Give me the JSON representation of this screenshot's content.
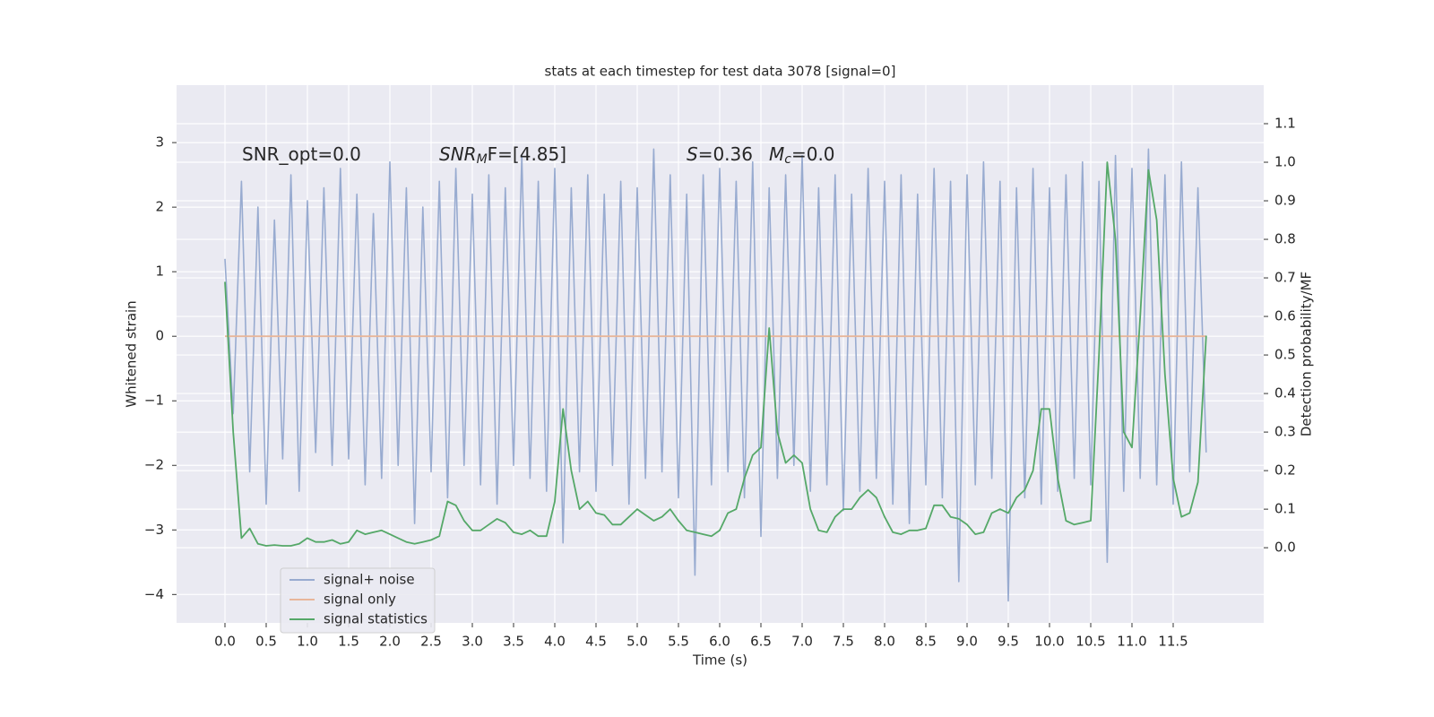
{
  "chart_data": {
    "type": "line",
    "title": "stats at each timestep for test data 3078 [signal=0]",
    "xlabel": "Time (s)",
    "ylabel": "Whitened strain",
    "y2label": "Detection probability/MF",
    "annotations": [
      {
        "text": "SNR_opt=0.0"
      },
      {
        "text": "SNR",
        "sub": "M",
        "tail": "F=[4.85]"
      },
      {
        "text": "S",
        "tail": "=0.36"
      },
      {
        "text": "M",
        "sub": "c",
        "tail": "=0.0"
      }
    ],
    "xlim": [
      -0.587,
      12.598
    ],
    "ylim": [
      -4.44,
      3.89
    ],
    "y2lim": [
      -0.195,
      1.2
    ],
    "xticks": [
      {
        "value": 0,
        "label": "0.0"
      },
      0.5,
      {
        "value": 1,
        "label": "1.0"
      },
      1.5,
      {
        "value": 2,
        "label": "2.0"
      },
      2.5,
      {
        "value": 3,
        "label": "3.0"
      },
      3.5,
      {
        "value": 4,
        "label": "4.0"
      },
      4.5,
      {
        "value": 5,
        "label": "5.0"
      },
      5.5,
      {
        "value": 6,
        "label": "6.0"
      },
      6.5,
      {
        "value": 7,
        "label": "7.0"
      },
      7.5,
      {
        "value": 8,
        "label": "8.0"
      },
      8.5,
      {
        "value": 9,
        "label": "9.0"
      },
      9.5,
      {
        "value": 10,
        "label": "10.0"
      },
      10.5,
      {
        "value": 11,
        "label": "11.0"
      },
      11.5
    ],
    "yticks": [
      {
        "value": -4,
        "label": "−4"
      },
      {
        "value": -3,
        "label": "−3"
      },
      {
        "value": -2,
        "label": "−2"
      },
      {
        "value": -1,
        "label": "−1"
      },
      0,
      1,
      2,
      3
    ],
    "y2ticks": [
      {
        "value": 0,
        "label": "0.0"
      },
      0.1,
      0.2,
      0.3,
      0.4,
      0.5,
      0.6,
      0.7,
      0.8,
      0.9,
      {
        "value": 1,
        "label": "1.0"
      },
      1.1
    ],
    "grid": true,
    "legend": "lower left",
    "x": [
      0.0,
      0.1,
      0.2,
      0.3,
      0.4,
      0.5,
      0.6,
      0.7,
      0.8,
      0.9,
      1.0,
      1.1,
      1.2,
      1.3,
      1.4,
      1.5,
      1.6,
      1.7,
      1.8,
      1.9,
      2.0,
      2.1,
      2.2,
      2.3,
      2.4,
      2.5,
      2.6,
      2.7,
      2.8,
      2.9,
      3.0,
      3.1,
      3.2,
      3.3,
      3.4,
      3.5,
      3.6,
      3.7,
      3.8,
      3.9,
      4.0,
      4.1,
      4.2,
      4.3,
      4.4,
      4.5,
      4.6,
      4.7,
      4.8,
      4.9,
      5.0,
      5.1,
      5.2,
      5.3,
      5.4,
      5.5,
      5.6,
      5.7,
      5.8,
      5.9,
      6.0,
      6.1,
      6.2,
      6.3,
      6.4,
      6.5,
      6.6,
      6.7,
      6.8,
      6.9,
      7.0,
      7.1,
      7.2,
      7.3,
      7.4,
      7.5,
      7.6,
      7.7,
      7.8,
      7.9,
      8.0,
      8.1,
      8.2,
      8.3,
      8.4,
      8.5,
      8.6,
      8.7,
      8.8,
      8.9,
      9.0,
      9.1,
      9.2,
      9.3,
      9.4,
      9.5,
      9.6,
      9.7,
      9.8,
      9.9,
      10.0,
      10.1,
      10.2,
      10.3,
      10.4,
      10.5,
      10.6,
      10.7,
      10.8,
      10.9,
      11.0,
      11.1,
      11.2,
      11.3,
      11.4,
      11.5,
      11.6,
      11.7,
      11.8,
      11.9
    ],
    "series": [
      {
        "name": "signal+ noise",
        "color": "#98abd0",
        "values": [
          1.2,
          -1.2,
          2.4,
          -2.1,
          2.0,
          -2.6,
          1.8,
          -1.9,
          2.5,
          -2.4,
          2.1,
          -1.8,
          2.3,
          -2.0,
          2.6,
          -1.9,
          2.2,
          -2.3,
          1.9,
          -2.2,
          2.7,
          -2.0,
          2.3,
          -2.9,
          2.0,
          -2.1,
          2.4,
          -2.5,
          2.6,
          -2.0,
          2.2,
          -2.3,
          2.5,
          -2.6,
          2.3,
          -2.0,
          2.8,
          -2.2,
          2.4,
          -2.4,
          2.6,
          -3.2,
          2.3,
          -2.1,
          2.5,
          -2.4,
          2.2,
          -2.0,
          2.4,
          -2.6,
          2.3,
          -2.2,
          2.9,
          -2.1,
          2.5,
          -2.5,
          2.2,
          -3.7,
          2.5,
          -2.3,
          2.6,
          -2.1,
          2.4,
          -2.5,
          2.7,
          -3.1,
          2.3,
          -2.2,
          2.5,
          -2.0,
          2.8,
          -2.4,
          2.3,
          -2.3,
          2.5,
          -2.7,
          2.2,
          -2.4,
          2.6,
          -2.2,
          2.4,
          -2.6,
          2.5,
          -2.9,
          2.2,
          -2.3,
          2.6,
          -2.5,
          2.4,
          -3.8,
          2.5,
          -2.3,
          2.7,
          -2.2,
          2.4,
          -4.1,
          2.3,
          -2.5,
          2.6,
          -2.6,
          2.3,
          -2.4,
          2.5,
          -2.2,
          2.7,
          -2.3,
          2.4,
          -3.5,
          2.8,
          -2.4,
          2.6,
          -2.2,
          2.9,
          -2.3,
          2.5,
          -2.6,
          2.7,
          -2.1,
          2.3,
          -1.8
        ]
      },
      {
        "name": "signal only",
        "color": "#e8b69a",
        "values": [
          0,
          0,
          0,
          0,
          0,
          0,
          0,
          0,
          0,
          0,
          0,
          0,
          0,
          0,
          0,
          0,
          0,
          0,
          0,
          0,
          0,
          0,
          0,
          0,
          0,
          0,
          0,
          0,
          0,
          0,
          0,
          0,
          0,
          0,
          0,
          0,
          0,
          0,
          0,
          0,
          0,
          0,
          0,
          0,
          0,
          0,
          0,
          0,
          0,
          0,
          0,
          0,
          0,
          0,
          0,
          0,
          0,
          0,
          0,
          0,
          0,
          0,
          0,
          0,
          0,
          0,
          0,
          0,
          0,
          0,
          0,
          0,
          0,
          0,
          0,
          0,
          0,
          0,
          0,
          0,
          0,
          0,
          0,
          0,
          0,
          0,
          0,
          0,
          0,
          0,
          0,
          0,
          0,
          0,
          0,
          0,
          0,
          0,
          0,
          0,
          0,
          0,
          0,
          0,
          0,
          0,
          0,
          0,
          0,
          0,
          0,
          0,
          0,
          0,
          0,
          0,
          0,
          0,
          0,
          0
        ]
      },
      {
        "name": "signal statistics",
        "color": "#55a868",
        "axis": "y2",
        "values": [
          0.69,
          0.3,
          0.025,
          0.05,
          0.01,
          0.005,
          0.007,
          0.005,
          0.005,
          0.01,
          0.025,
          0.015,
          0.015,
          0.02,
          0.01,
          0.015,
          0.045,
          0.035,
          0.04,
          0.045,
          0.035,
          0.025,
          0.015,
          0.01,
          0.015,
          0.02,
          0.03,
          0.12,
          0.11,
          0.07,
          0.045,
          0.045,
          0.06,
          0.075,
          0.065,
          0.04,
          0.035,
          0.045,
          0.03,
          0.03,
          0.12,
          0.36,
          0.2,
          0.1,
          0.12,
          0.09,
          0.085,
          0.06,
          0.06,
          0.08,
          0.1,
          0.085,
          0.07,
          0.08,
          0.1,
          0.07,
          0.045,
          0.04,
          0.035,
          0.03,
          0.045,
          0.09,
          0.1,
          0.18,
          0.24,
          0.26,
          0.57,
          0.3,
          0.22,
          0.24,
          0.22,
          0.1,
          0.045,
          0.04,
          0.08,
          0.1,
          0.1,
          0.13,
          0.15,
          0.13,
          0.08,
          0.04,
          0.035,
          0.045,
          0.045,
          0.05,
          0.11,
          0.11,
          0.08,
          0.075,
          0.06,
          0.035,
          0.04,
          0.09,
          0.1,
          0.09,
          0.13,
          0.15,
          0.2,
          0.36,
          0.36,
          0.18,
          0.07,
          0.06,
          0.065,
          0.07,
          0.5,
          1.0,
          0.8,
          0.3,
          0.26,
          0.6,
          0.98,
          0.85,
          0.45,
          0.18,
          0.08,
          0.09,
          0.17,
          0.55
        ]
      }
    ]
  }
}
